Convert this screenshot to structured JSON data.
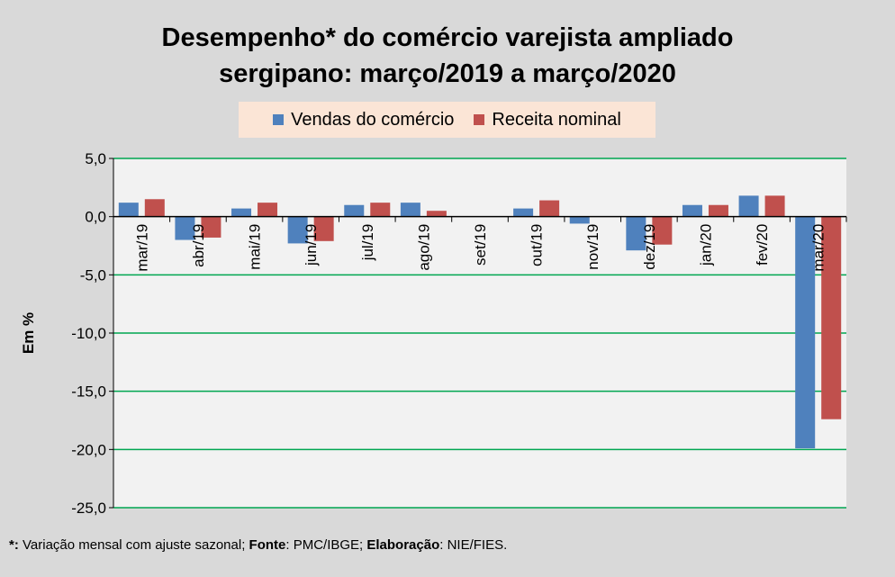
{
  "chart_data": {
    "type": "bar",
    "title_line1": "Desempenho* do comércio varejista ampliado",
    "title_line2": "sergipano: março/2019 a março/2020",
    "ylabel": "Em %",
    "xlabel": "",
    "ylim": [
      -25,
      5
    ],
    "yticks": [
      5,
      0,
      -5,
      -10,
      -15,
      -20,
      -25
    ],
    "ytick_labels": [
      "5,0",
      "0,0",
      "-5,0",
      "-10,0",
      "-15,0",
      "-20,0",
      "-25,0"
    ],
    "categories": [
      "mar/19",
      "abr/19",
      "mai/19",
      "jun/19",
      "jul/19",
      "ago/19",
      "set/19",
      "out/19",
      "nov/19",
      "dez/19",
      "jan/20",
      "fev/20",
      "mar/20"
    ],
    "series": [
      {
        "name": "Vendas do comércio",
        "color": "#4f81bd",
        "values": [
          1.2,
          -2.0,
          0.7,
          -2.3,
          1.0,
          1.2,
          0.0,
          0.7,
          -0.6,
          -2.9,
          1.0,
          1.8,
          -19.9
        ]
      },
      {
        "name": "Receita nominal",
        "color": "#c0504d",
        "values": [
          1.5,
          -1.8,
          1.2,
          -2.1,
          1.2,
          0.5,
          0.0,
          1.4,
          0.0,
          -2.4,
          1.0,
          1.8,
          -17.4
        ]
      }
    ],
    "grid": true,
    "legend_position": "top"
  },
  "footnote": {
    "asterisk": "*:",
    "desc": " Variação mensal com ajuste sazonal; ",
    "source_label": "Fonte",
    "source_value": ": PMC/IBGE; ",
    "elab_label": "Elaboração",
    "elab_value": ": NIE/FIES."
  },
  "colors": {
    "grid": "#00a651",
    "background": "#d9d9d9",
    "plot_bg": "#f2f2f2",
    "legend_bg": "#fbe5d6"
  }
}
